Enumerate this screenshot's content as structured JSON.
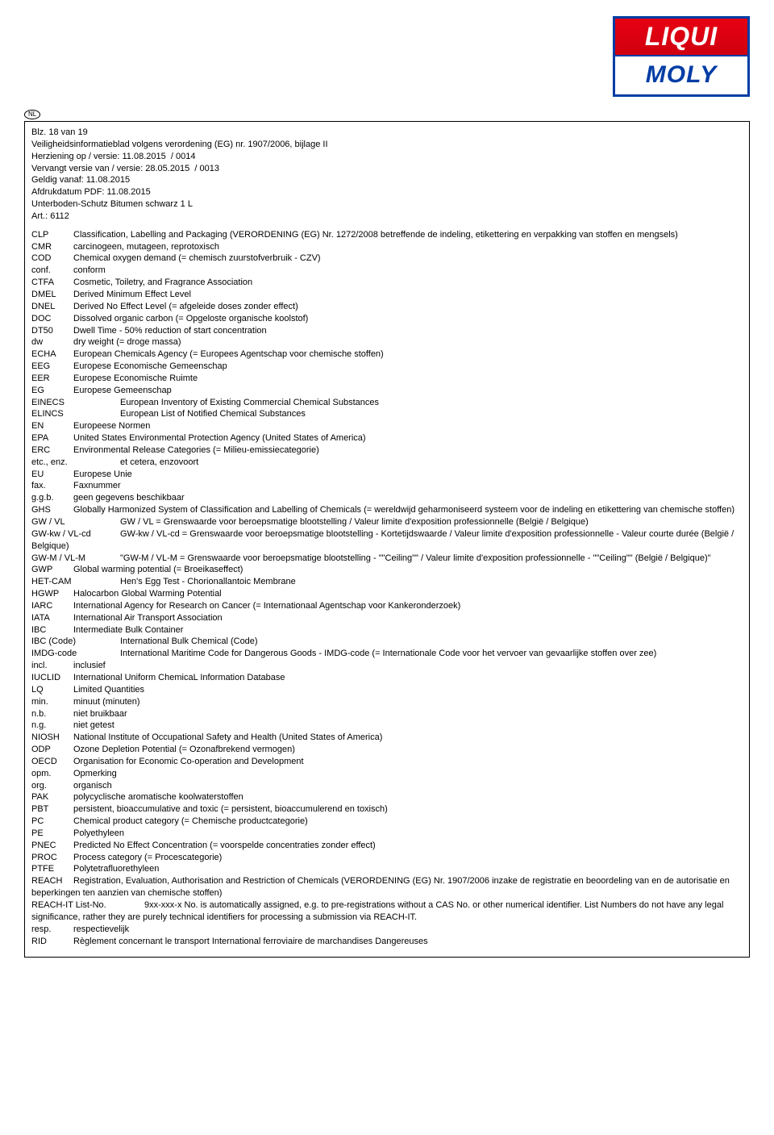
{
  "logo": {
    "top": "LIQUI",
    "bottom": "MOLY"
  },
  "nl_badge": "NL",
  "header": {
    "page": "Blz. 18 van 19",
    "sheet": "Veiligheidsinformatieblad volgens verordening (EG) nr. 1907/2006, bijlage II",
    "revision": "Herziening op / versie: 11.08.2015  / 0014",
    "replaces": "Vervangt versie van / versie: 28.05.2015  / 0013",
    "valid_from": "Geldig vanaf: 11.08.2015",
    "print_date": "Afdrukdatum PDF: 11.08.2015",
    "product": "Unterboden-Schutz Bitumen schwarz 1 L",
    "art": "Art.: 6112"
  },
  "defs": [
    {
      "k": "CLP",
      "v": "Classification, Labelling and Packaging (VERORDENING (EG) Nr. 1272/2008 betreffende de indeling, etikettering en verpakking van stoffen en mengsels)"
    },
    {
      "k": "CMR",
      "v": "carcinogeen, mutageen, reprotoxisch"
    },
    {
      "k": "COD",
      "v": "Chemical oxygen demand (= chemisch zuurstofverbruik - CZV)"
    },
    {
      "k": "conf.",
      "v": "conform"
    },
    {
      "k": "CTFA",
      "v": "Cosmetic, Toiletry, and Fragrance Association"
    },
    {
      "k": "DMEL",
      "v": "Derived Minimum Effect Level"
    },
    {
      "k": "DNEL",
      "v": "Derived No Effect Level (= afgeleide doses zonder effect)"
    },
    {
      "k": "DOC",
      "v": "Dissolved organic carbon (= Opgeloste organische koolstof)"
    },
    {
      "k": "DT50",
      "v": "Dwell Time - 50% reduction of start concentration"
    },
    {
      "k": "dw",
      "v": "dry weight (= droge massa)"
    },
    {
      "k": "ECHA",
      "v": "European Chemicals Agency (= Europees Agentschap voor chemische stoffen)"
    },
    {
      "k": "EEG",
      "v": "Europese Economische Gemeenschap"
    },
    {
      "k": "EER",
      "v": "Europese Economische Ruimte"
    },
    {
      "k": "EG",
      "v": "Europese Gemeenschap"
    },
    {
      "k": "EINECS",
      "v": "European Inventory of Existing Commercial Chemical Substances",
      "wide": true
    },
    {
      "k": "ELINCS",
      "v": "European List of Notified Chemical Substances",
      "wide": true
    },
    {
      "k": "EN",
      "v": "Europeese Normen"
    },
    {
      "k": "EPA",
      "v": "United States Environmental Protection Agency (United States of America)"
    },
    {
      "k": "ERC",
      "v": "Environmental Release Categories (= Milieu-emissiecategorie)"
    },
    {
      "k": "etc., enz.",
      "v": "et cetera, enzovoort",
      "wide": true
    },
    {
      "k": "EU",
      "v": "Europese Unie"
    },
    {
      "k": "fax.",
      "v": "Faxnummer"
    },
    {
      "k": "g.g.b.",
      "v": "geen gegevens beschikbaar"
    },
    {
      "k": "GHS",
      "v": "Globally Harmonized System of Classification and Labelling of Chemicals (= wereldwijd geharmoniseerd systeem voor de indeling en etikettering van chemische stoffen)"
    },
    {
      "k": "GW / VL",
      "v": "GW / VL = Grenswaarde voor beroepsmatige blootstelling / Valeur limite d'exposition professionnelle (België / Belgique)",
      "wide": true
    },
    {
      "k": "GW-kw / VL-cd",
      "v": "GW-kw / VL-cd = Grenswaarde voor beroepsmatige blootstelling - Kortetijdswaarde / Valeur limite d'exposition professionnelle - Valeur courte durée  (België / Belgique)",
      "wide": true
    },
    {
      "k": "GW-M / VL-M",
      "v": "\"GW-M / VL-M = Grenswaarde voor beroepsmatige blootstelling - \"\"Ceiling\"\" / Valeur limite d'exposition professionnelle - \"\"Ceiling\"\"  (België / Belgique)\"",
      "wide": true
    },
    {
      "k": "GWP",
      "v": "Global warming potential (= Broeikaseffect)"
    },
    {
      "k": "HET-CAM",
      "v": "Hen's Egg Test - Chorionallantoic Membrane",
      "wide": true
    },
    {
      "k": "HGWP",
      "v": "Halocarbon Global Warming Potential"
    },
    {
      "k": "IARC",
      "v": "International Agency for Research on Cancer (= Internationaal Agentschap voor Kankeronderzoek)"
    },
    {
      "k": "IATA",
      "v": "International Air Transport Association"
    },
    {
      "k": "IBC",
      "v": "Intermediate Bulk Container"
    },
    {
      "k": "IBC (Code)",
      "v": "International Bulk Chemical (Code)",
      "wide": true
    },
    {
      "k": "IMDG-code",
      "v": "International Maritime Code for Dangerous Goods - IMDG-code (= Internationale Code voor het vervoer van gevaarlijke stoffen over zee)",
      "wide": true
    },
    {
      "k": "incl.",
      "v": "inclusief"
    },
    {
      "k": "IUCLID",
      "v": "International Uniform ChemicaL Information Database"
    },
    {
      "k": "LQ",
      "v": "Limited Quantities"
    },
    {
      "k": "min.",
      "v": "minuut (minuten)"
    },
    {
      "k": "n.b.",
      "v": "niet bruikbaar"
    },
    {
      "k": "n.g.",
      "v": "niet getest"
    },
    {
      "k": "NIOSH",
      "v": "National Institute of Occupational Safety and Health (United States of America)"
    },
    {
      "k": "ODP",
      "v": "Ozone Depletion Potential (= Ozonafbrekend vermogen)"
    },
    {
      "k": "OECD",
      "v": "Organisation for Economic Co-operation and Development"
    },
    {
      "k": "opm.",
      "v": "Opmerking"
    },
    {
      "k": "org.",
      "v": "organisch"
    },
    {
      "k": "PAK",
      "v": "polycyclische aromatische koolwaterstoffen"
    },
    {
      "k": "PBT",
      "v": "persistent, bioaccumulative and toxic (= persistent, bioaccumulerend en toxisch)"
    },
    {
      "k": "PC",
      "v": "Chemical product category (= Chemische productcategorie)"
    },
    {
      "k": "PE",
      "v": "Polyethyleen"
    },
    {
      "k": "PNEC",
      "v": "Predicted No Effect Concentration (= voorspelde concentraties zonder effect)"
    },
    {
      "k": "PROC",
      "v": "Process category (= Procescategorie)"
    },
    {
      "k": "PTFE",
      "v": "Polytetrafluorethyleen"
    },
    {
      "k": "REACH",
      "v": "Registration, Evaluation, Authorisation and Restriction of Chemicals (VERORDENING (EG) Nr. 1907/2006 inzake de registratie en beoordeling van en de autorisatie en beperkingen ten aanzien van chemische stoffen)"
    },
    {
      "k": "REACH-IT List-No.",
      "v": "9xx-xxx-x No. is automatically assigned, e.g. to pre-registrations without a CAS No. or other numerical identifier. List Numbers do not have any legal significance, rather they are purely technical identifiers for processing a submission via REACH-IT.",
      "wide": true,
      "extra": true
    },
    {
      "k": "resp.",
      "v": "respectievelijk"
    },
    {
      "k": "RID",
      "v": "Règlement concernant le transport International ferroviaire de marchandises Dangereuses"
    }
  ]
}
